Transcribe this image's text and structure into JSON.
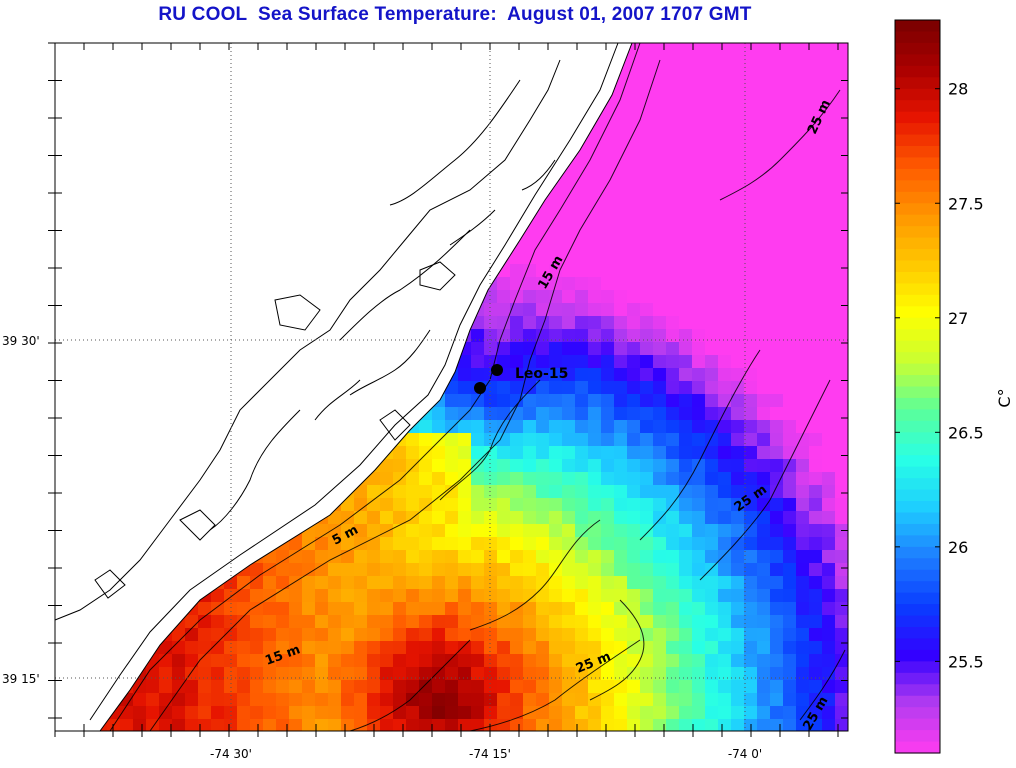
{
  "title": "RU COOL  Sea Surface Temperature:  August 01, 2007 1707 GMT",
  "map": {
    "lon_ticks": [
      {
        "label": "-74 30'",
        "lon": -74.5
      },
      {
        "label": "-74 15'",
        "lon": -74.25
      },
      {
        "label": "-74 0'",
        "lon": -74.0
      }
    ],
    "lat_ticks": [
      {
        "label": "39 30'",
        "lat": 39.5
      },
      {
        "label": "39 15'",
        "lat": 39.25
      }
    ],
    "station": {
      "label": "Leo-15"
    },
    "contour_labels": [
      "15 m",
      "5 m",
      "15 m",
      "25 m",
      "25 m",
      "25 m",
      "25 m"
    ]
  },
  "colorbar": {
    "unit": "C°",
    "min": 25.1,
    "max": 28.3,
    "tick_values": [
      28,
      27.5,
      27,
      26.5,
      26,
      25.5
    ],
    "tick_labels": [
      "28",
      "27.5",
      "27",
      "26.5",
      "26",
      "25.5"
    ],
    "colormap": [
      "#ff3cf0",
      "#b43cf0",
      "#3200ff",
      "#0a3cff",
      "#1e7dff",
      "#1ecdff",
      "#28ffe6",
      "#5aff9b",
      "#c8ff32",
      "#ffff00",
      "#ffc800",
      "#ff9600",
      "#ff5a00",
      "#e61400",
      "#aa0000",
      "#780000"
    ]
  },
  "colors": {
    "title": "#1414c8",
    "land": "#ffffff",
    "coast": "#000000"
  }
}
